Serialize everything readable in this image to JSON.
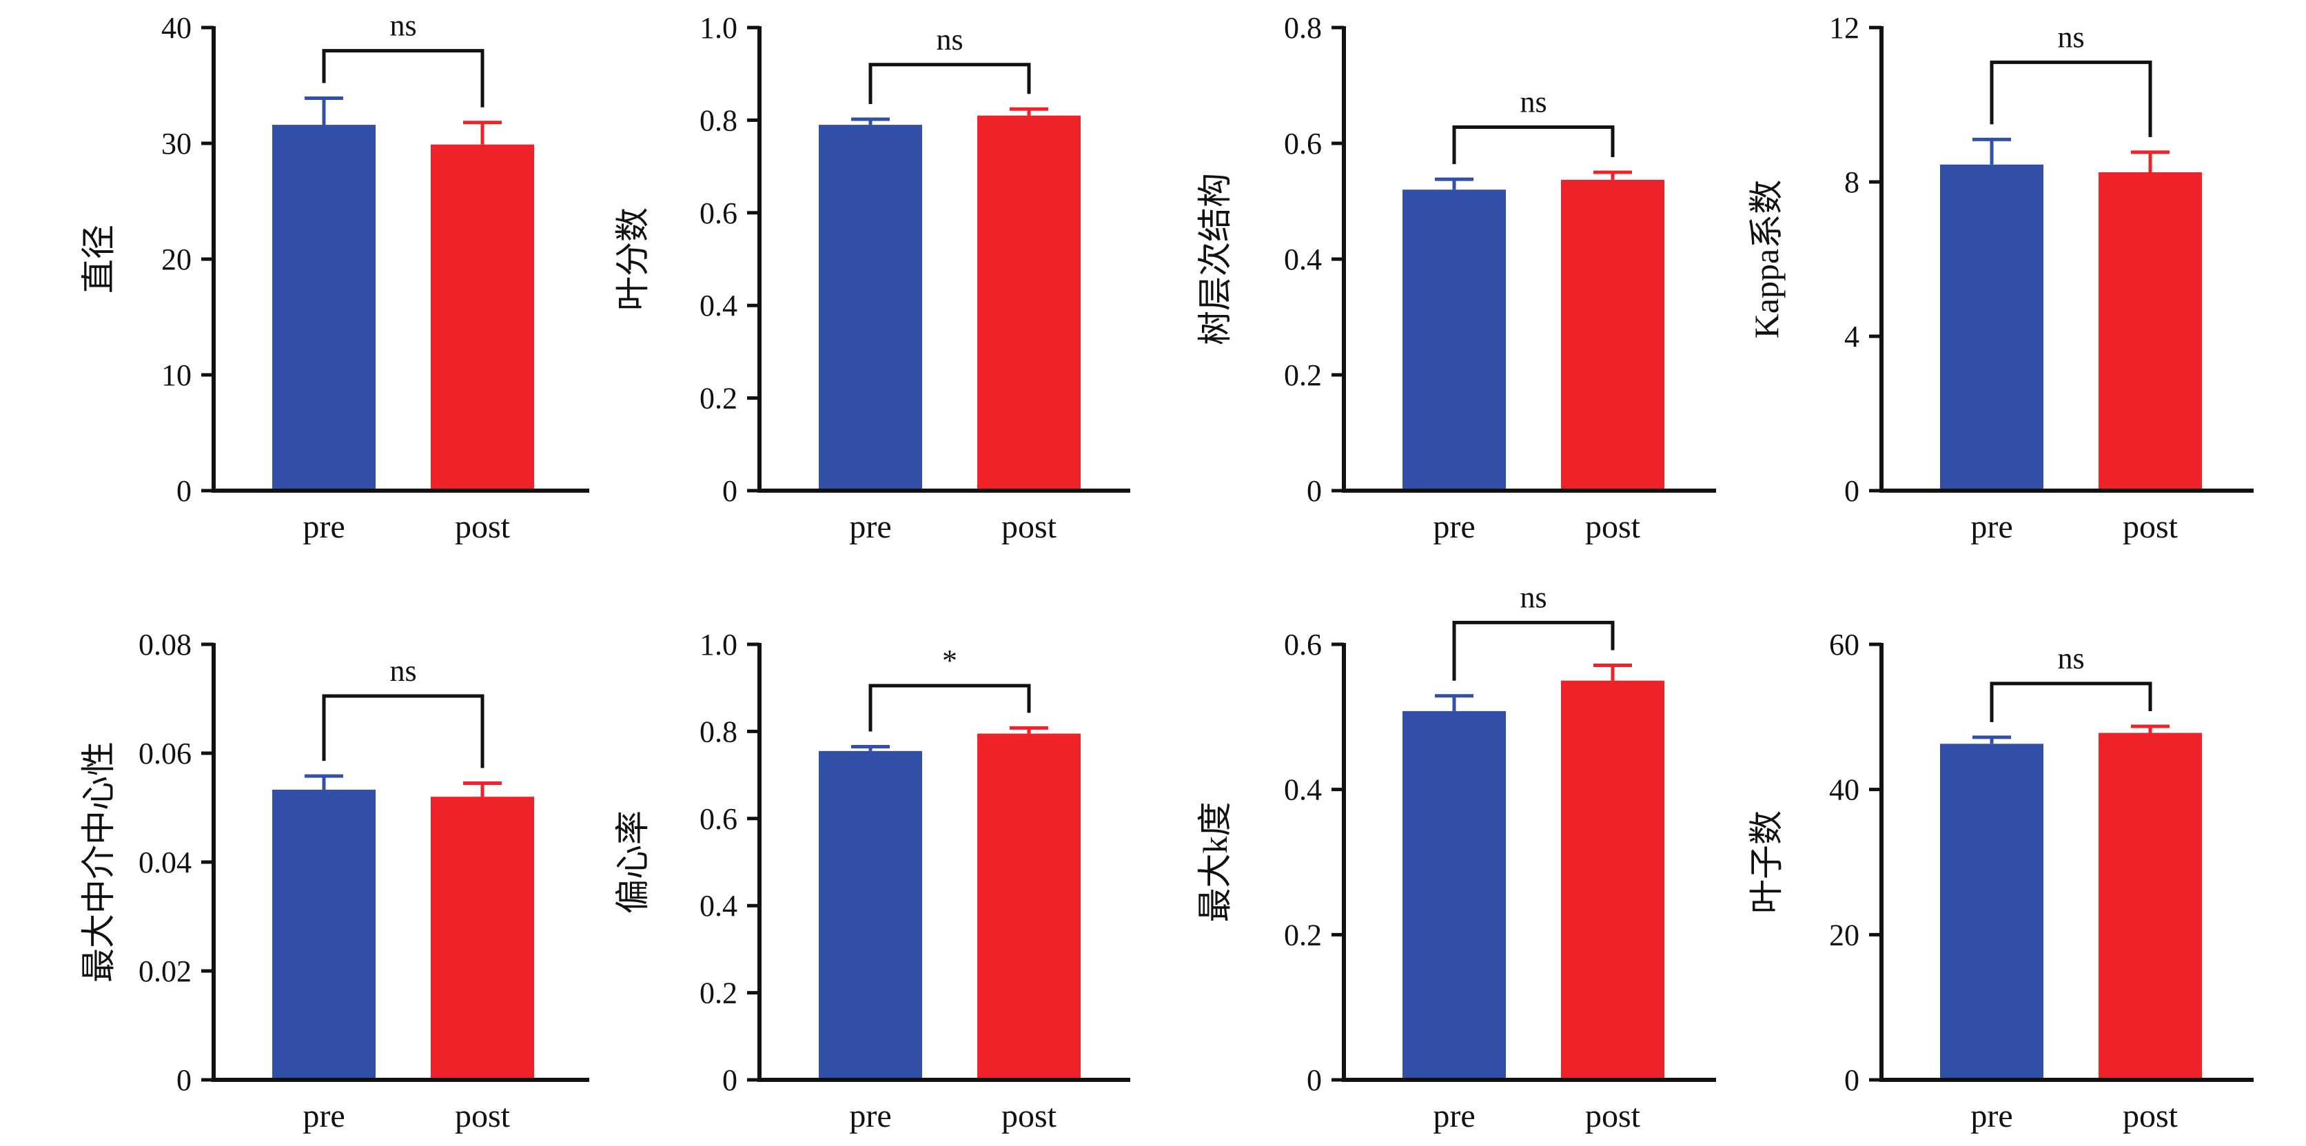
{
  "colors": {
    "pre": "#3350a8",
    "post": "#ee2229",
    "axis": "#111111",
    "bracket": "#111111"
  },
  "chart_data": [
    {
      "type": "bar",
      "ylabel": "直径",
      "categories": [
        "pre",
        "post"
      ],
      "values": [
        31.6,
        29.9
      ],
      "errors": [
        2.3,
        1.9
      ],
      "ylim": [
        0,
        40
      ],
      "yticks": [
        0,
        10,
        20,
        30,
        40
      ],
      "ytick_labels": [
        "0",
        "10",
        "20",
        "30",
        "40"
      ],
      "significance": "ns",
      "bracket_y": 38.0,
      "grid": false
    },
    {
      "type": "bar",
      "ylabel": "叶分数",
      "categories": [
        "pre",
        "post"
      ],
      "values": [
        0.79,
        0.81
      ],
      "errors": [
        0.012,
        0.014
      ],
      "ylim": [
        0,
        1.0
      ],
      "yticks": [
        0,
        0.2,
        0.4,
        0.6,
        0.8,
        1.0
      ],
      "ytick_labels": [
        "0",
        "0.2",
        "0.4",
        "0.6",
        "0.8",
        "1.0"
      ],
      "significance": "ns",
      "bracket_y": 0.92,
      "grid": false
    },
    {
      "type": "bar",
      "ylabel": "树层次结构",
      "categories": [
        "pre",
        "post"
      ],
      "values": [
        0.52,
        0.537
      ],
      "errors": [
        0.018,
        0.013
      ],
      "ylim": [
        0,
        0.8
      ],
      "yticks": [
        0,
        0.2,
        0.4,
        0.6,
        0.8
      ],
      "ytick_labels": [
        "0",
        "0.2",
        "0.4",
        "0.6",
        "0.8"
      ],
      "significance": "ns",
      "bracket_y": 0.628,
      "grid": false
    },
    {
      "type": "bar",
      "ylabel": "Kappa系数",
      "categories": [
        "pre",
        "post"
      ],
      "values": [
        8.45,
        8.25
      ],
      "errors": [
        0.65,
        0.52
      ],
      "ylim": [
        0,
        12
      ],
      "yticks": [
        0,
        4,
        8,
        12
      ],
      "ytick_labels": [
        "0",
        "4",
        "8",
        "12"
      ],
      "significance": "ns",
      "bracket_y": 11.1,
      "grid": false
    },
    {
      "type": "bar",
      "ylabel": "最大中介中心性",
      "categories": [
        "pre",
        "post"
      ],
      "values": [
        0.0533,
        0.052
      ],
      "errors": [
        0.0025,
        0.0025
      ],
      "ylim": [
        0,
        0.08
      ],
      "yticks": [
        0,
        0.02,
        0.04,
        0.06,
        0.08
      ],
      "ytick_labels": [
        "0",
        "0.02",
        "0.04",
        "0.06",
        "0.08"
      ],
      "significance": "ns",
      "bracket_y": 0.0705,
      "grid": false
    },
    {
      "type": "bar",
      "ylabel": "偏心率",
      "categories": [
        "pre",
        "post"
      ],
      "values": [
        0.755,
        0.795
      ],
      "errors": [
        0.01,
        0.013
      ],
      "ylim": [
        0,
        1.0
      ],
      "yticks": [
        0,
        0.2,
        0.4,
        0.6,
        0.8,
        1.0
      ],
      "ytick_labels": [
        "0",
        "0.2",
        "0.4",
        "0.6",
        "0.8",
        "1.0"
      ],
      "significance": "*",
      "bracket_y": 0.905,
      "grid": false
    },
    {
      "type": "bar",
      "ylabel": "最大k度",
      "categories": [
        "pre",
        "post"
      ],
      "values": [
        0.508,
        0.55
      ],
      "errors": [
        0.021,
        0.021
      ],
      "ylim": [
        0,
        0.6
      ],
      "yticks": [
        0,
        0.2,
        0.4,
        0.6
      ],
      "ytick_labels": [
        "0",
        "0.2",
        "0.4",
        "0.6"
      ],
      "significance": "ns",
      "bracket_y": 0.63,
      "grid": false
    },
    {
      "type": "bar",
      "ylabel": "叶子数",
      "categories": [
        "pre",
        "post"
      ],
      "values": [
        46.3,
        47.8
      ],
      "errors": [
        0.9,
        0.9
      ],
      "ylim": [
        0,
        60
      ],
      "yticks": [
        0,
        20,
        40,
        60
      ],
      "ytick_labels": [
        "0",
        "20",
        "40",
        "60"
      ],
      "significance": "ns",
      "bracket_y": 54.6,
      "grid": false
    }
  ]
}
